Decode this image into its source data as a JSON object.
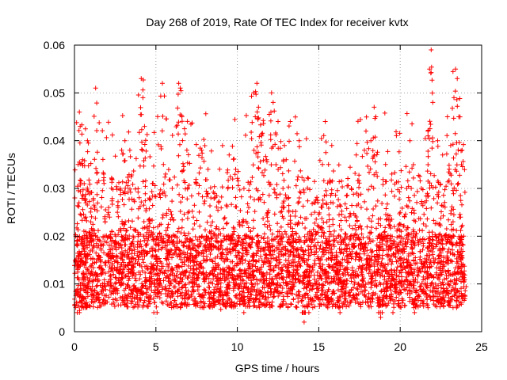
{
  "chart_data": {
    "type": "scatter",
    "title": "Day 268 of 2019, Rate Of TEC Index for receiver kvtx",
    "xlabel": "GPS time / hours",
    "ylabel": "ROTI / TECUs",
    "xlim": [
      0,
      25
    ],
    "ylim": [
      0,
      0.06
    ],
    "x_ticks": [
      "0",
      "5",
      "10",
      "15",
      "20",
      "25"
    ],
    "x_tick_values": [
      0,
      5,
      10,
      15,
      20,
      25
    ],
    "y_ticks": [
      "0",
      "0.01",
      "0.02",
      "0.03",
      "0.04",
      "0.05",
      "0.06"
    ],
    "y_tick_values": [
      0,
      0.01,
      0.02,
      0.03,
      0.04,
      0.05,
      0.06
    ],
    "grid": true,
    "marker": "+",
    "color": "#ff0000",
    "series": [
      {
        "name": "ROTI",
        "points": [
          [
            0.2,
            0.013
          ],
          [
            0.3,
            0.046
          ],
          [
            0.35,
            0.043
          ],
          [
            0.5,
            0.036
          ],
          [
            0.6,
            0.031
          ],
          [
            0.8,
            0.04
          ],
          [
            1.0,
            0.023
          ],
          [
            1.3,
            0.051
          ],
          [
            1.5,
            0.016
          ],
          [
            1.8,
            0.033
          ],
          [
            2.1,
            0.026
          ],
          [
            2.4,
            0.012
          ],
          [
            2.8,
            0.03
          ],
          [
            3.1,
            0.04
          ],
          [
            3.4,
            0.038
          ],
          [
            3.6,
            0.02
          ],
          [
            4.1,
            0.053
          ],
          [
            4.2,
            0.049
          ],
          [
            4.3,
            0.043
          ],
          [
            4.6,
            0.028
          ],
          [
            5.0,
            0.012
          ],
          [
            5.4,
            0.052
          ],
          [
            5.6,
            0.033
          ],
          [
            6.0,
            0.03
          ],
          [
            6.4,
            0.052
          ],
          [
            6.5,
            0.051
          ],
          [
            6.6,
            0.045
          ],
          [
            6.9,
            0.038
          ],
          [
            7.3,
            0.024
          ],
          [
            7.8,
            0.038
          ],
          [
            8.2,
            0.034
          ],
          [
            8.6,
            0.013
          ],
          [
            9.0,
            0.019
          ],
          [
            9.5,
            0.037
          ],
          [
            9.9,
            0.034
          ],
          [
            10.3,
            0.018
          ],
          [
            10.7,
            0.026
          ],
          [
            11.0,
            0.05
          ],
          [
            11.1,
            0.045
          ],
          [
            11.2,
            0.052
          ],
          [
            11.3,
            0.047
          ],
          [
            11.5,
            0.041
          ],
          [
            11.8,
            0.036
          ],
          [
            12.1,
            0.05
          ],
          [
            12.2,
            0.048
          ],
          [
            12.5,
            0.044
          ],
          [
            12.8,
            0.03
          ],
          [
            13.0,
            0.036
          ],
          [
            13.3,
            0.02
          ],
          [
            13.8,
            0.04
          ],
          [
            14.1,
            0.002
          ],
          [
            14.3,
            0.013
          ],
          [
            14.7,
            0.027
          ],
          [
            15.0,
            0.022
          ],
          [
            15.4,
            0.044
          ],
          [
            15.6,
            0.035
          ],
          [
            15.8,
            0.039
          ],
          [
            16.2,
            0.012
          ],
          [
            16.6,
            0.024
          ],
          [
            17.0,
            0.03
          ],
          [
            17.3,
            0.037
          ],
          [
            17.6,
            0.026
          ],
          [
            17.9,
            0.042
          ],
          [
            18.2,
            0.04
          ],
          [
            18.4,
            0.047
          ],
          [
            18.5,
            0.045
          ],
          [
            18.8,
            0.003
          ],
          [
            19.1,
            0.035
          ],
          [
            19.6,
            0.019
          ],
          [
            20.0,
            0.025
          ],
          [
            20.4,
            0.03
          ],
          [
            20.9,
            0.018
          ],
          [
            21.3,
            0.03
          ],
          [
            21.7,
            0.042
          ],
          [
            21.8,
            0.055
          ],
          [
            21.9,
            0.059
          ],
          [
            22.0,
            0.048
          ],
          [
            22.3,
            0.04
          ],
          [
            22.6,
            0.037
          ],
          [
            22.9,
            0.045
          ],
          [
            23.1,
            0.039
          ],
          [
            23.3,
            0.049
          ],
          [
            23.4,
            0.055
          ],
          [
            23.5,
            0.053
          ],
          [
            23.6,
            0.045
          ],
          [
            23.8,
            0.038
          ],
          [
            23.9,
            0.02
          ]
        ]
      }
    ],
    "dense_band": {
      "x_range": [
        0,
        24
      ],
      "y_min": 0.005,
      "y_max": 0.02
    }
  }
}
